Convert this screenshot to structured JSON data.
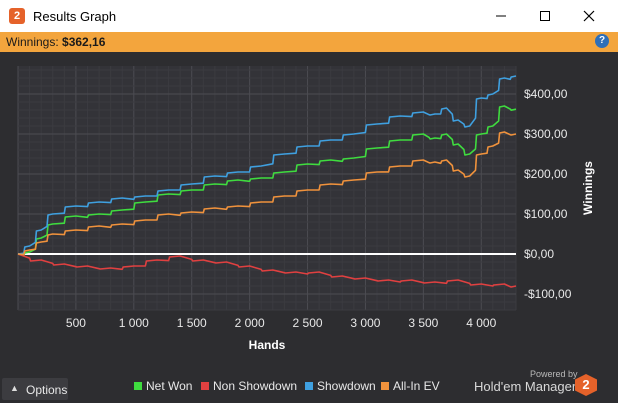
{
  "window": {
    "title": "Results Graph",
    "app_icon_glyph": "2",
    "controls": [
      "minimize-icon",
      "maximize-icon",
      "close-icon"
    ]
  },
  "winnings_bar": {
    "label": "Winnings: ",
    "value": "$362,16",
    "help_glyph": "?"
  },
  "chart_data": {
    "type": "line",
    "xlabel": "Hands",
    "ylabel": "Winnings",
    "xlim": [
      0,
      4300
    ],
    "ylim": [
      -140,
      470
    ],
    "x_ticks": [
      500,
      1000,
      1500,
      2000,
      2500,
      3000,
      3500,
      4000
    ],
    "x_tick_labels": [
      "500",
      "1 000",
      "1 500",
      "2 000",
      "2 500",
      "3 000",
      "3 500",
      "4 000"
    ],
    "y_ticks": [
      400,
      300,
      200,
      100,
      0,
      -100
    ],
    "y_tick_labels": [
      "$400,00",
      "$300,00",
      "$200,00",
      "$100,00",
      "$0,00",
      "-$100,00"
    ],
    "zero_line": true,
    "grid": true,
    "series": [
      {
        "name": "Net Won",
        "color": "#3fdc3f",
        "x": [
          0,
          100,
          200,
          300,
          500,
          700,
          900,
          1100,
          1300,
          1500,
          1700,
          1900,
          2100,
          2300,
          2500,
          2700,
          2900,
          3100,
          3300,
          3500,
          3600,
          3700,
          3800,
          3900,
          4000,
          4100,
          4200,
          4300
        ],
        "y": [
          0,
          5,
          40,
          75,
          95,
          100,
          110,
          130,
          150,
          160,
          175,
          185,
          190,
          205,
          225,
          235,
          240,
          265,
          285,
          300,
          290,
          300,
          275,
          250,
          300,
          320,
          370,
          362
        ]
      },
      {
        "name": "Non Showdown",
        "color": "#e04040",
        "x": [
          0,
          200,
          400,
          600,
          800,
          1000,
          1200,
          1400,
          1600,
          1800,
          2000,
          2200,
          2400,
          2600,
          2800,
          3000,
          3200,
          3400,
          3600,
          3800,
          4000,
          4200,
          4300
        ],
        "y": [
          0,
          -15,
          -25,
          -30,
          -35,
          -30,
          -15,
          -5,
          -15,
          -20,
          -30,
          -40,
          -45,
          -45,
          -55,
          -60,
          -65,
          -65,
          -70,
          -65,
          -75,
          -75,
          -80
        ]
      },
      {
        "name": "Showdown",
        "color": "#3fa0e0",
        "x": [
          0,
          100,
          200,
          300,
          500,
          700,
          900,
          1100,
          1300,
          1500,
          1700,
          1900,
          2100,
          2300,
          2500,
          2700,
          2900,
          3100,
          3300,
          3500,
          3600,
          3700,
          3800,
          3900,
          4000,
          4100,
          4200,
          4300
        ],
        "y": [
          0,
          20,
          60,
          100,
          120,
          130,
          140,
          145,
          160,
          175,
          195,
          205,
          220,
          250,
          270,
          285,
          300,
          325,
          345,
          355,
          350,
          365,
          335,
          320,
          390,
          400,
          440,
          445
        ]
      },
      {
        "name": "All-In EV",
        "color": "#f0923c",
        "x": [
          0,
          100,
          200,
          300,
          500,
          700,
          900,
          1100,
          1300,
          1500,
          1700,
          1900,
          2100,
          2300,
          2500,
          2700,
          2900,
          3100,
          3300,
          3500,
          3600,
          3700,
          3800,
          3900,
          4000,
          4100,
          4200,
          4300
        ],
        "y": [
          0,
          10,
          30,
          50,
          60,
          70,
          75,
          85,
          100,
          105,
          115,
          120,
          130,
          145,
          160,
          175,
          185,
          205,
          220,
          235,
          230,
          235,
          210,
          195,
          250,
          270,
          305,
          300
        ]
      }
    ]
  },
  "legend": [
    {
      "label": "Net Won",
      "color": "#3fdc3f"
    },
    {
      "label": "Non Showdown",
      "color": "#e04040"
    },
    {
      "label": "Showdown",
      "color": "#3fa0e0"
    },
    {
      "label": "All-In EV",
      "color": "#f0923c"
    }
  ],
  "footer": {
    "options_label": "Options",
    "options_icon": "chevron-up-icon",
    "powered_by": "Powered by",
    "brand_name": "Hold'em Manager",
    "brand_logo_glyph": "2"
  }
}
